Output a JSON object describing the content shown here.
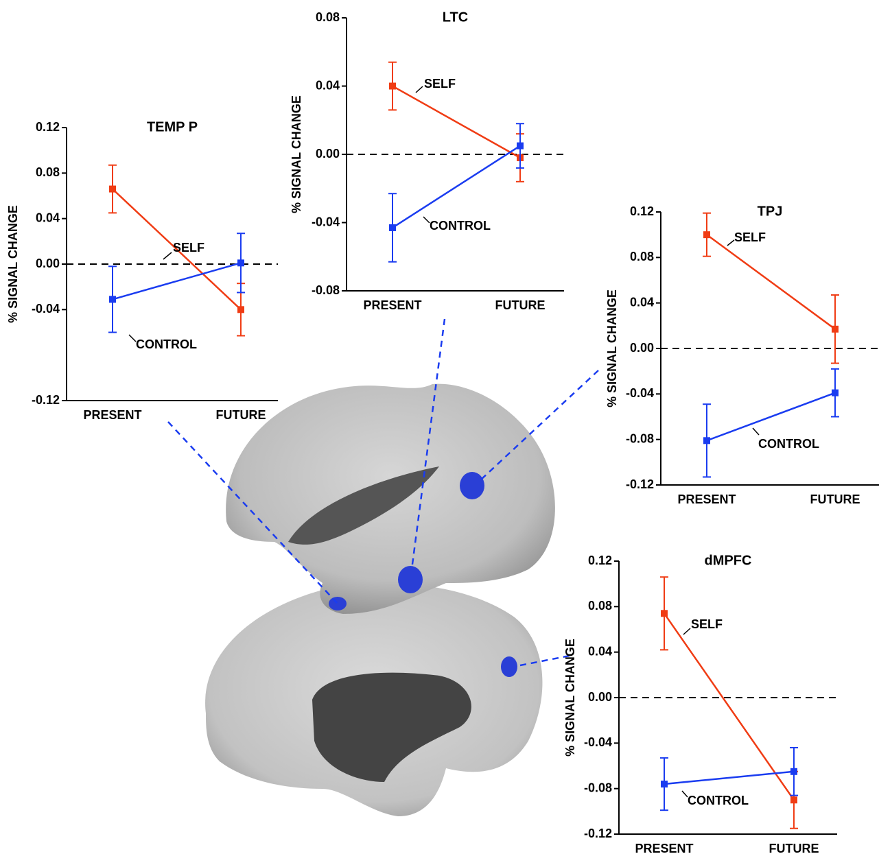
{
  "chart_data": [
    {
      "type": "line",
      "title": "TEMP P",
      "y_label": "% SIGNAL CHANGE",
      "categories": [
        "PRESENT",
        "FUTURE"
      ],
      "ylim": [
        -0.12,
        0.12
      ],
      "yticks": [
        0.12,
        0.08,
        0.04,
        {
          "value": 0,
          "label": "0.00"
        },
        -0.04,
        -0.12
      ],
      "reference_line": 0,
      "series": [
        {
          "name": "SELF",
          "color": "#f03c14",
          "values": [
            0.066,
            -0.04
          ],
          "errors": [
            0.021,
            0.023
          ]
        },
        {
          "name": "CONTROL",
          "color": "#1a3cf0",
          "values": [
            -0.031,
            0.001
          ],
          "errors": [
            0.029,
            0.026
          ]
        }
      ]
    },
    {
      "type": "line",
      "title": "LTC",
      "y_label": "% SIGNAL CHANGE",
      "categories": [
        "PRESENT",
        "FUTURE"
      ],
      "ylim": [
        -0.08,
        0.08
      ],
      "yticks": [
        0.08,
        0.04,
        {
          "value": 0,
          "label": "0.00"
        },
        -0.04,
        -0.08
      ],
      "reference_line": 0,
      "series": [
        {
          "name": "SELF",
          "color": "#f03c14",
          "values": [
            0.04,
            -0.002
          ],
          "errors": [
            0.014,
            0.014
          ]
        },
        {
          "name": "CONTROL",
          "color": "#1a3cf0",
          "values": [
            -0.043,
            0.005
          ],
          "errors": [
            0.02,
            0.013
          ]
        }
      ]
    },
    {
      "type": "line",
      "title": "TPJ",
      "y_label": "% SIGNAL CHANGE",
      "categories": [
        "PRESENT",
        "FUTURE"
      ],
      "ylim": [
        -0.12,
        0.12
      ],
      "yticks": [
        0.12,
        0.08,
        0.04,
        {
          "value": 0,
          "label": "0.00"
        },
        -0.04,
        -0.08,
        -0.12
      ],
      "reference_line": 0,
      "series": [
        {
          "name": "SELF",
          "color": "#f03c14",
          "values": [
            0.1,
            0.017
          ],
          "errors": [
            0.019,
            0.03
          ]
        },
        {
          "name": "CONTROL",
          "color": "#1a3cf0",
          "values": [
            -0.081,
            -0.039
          ],
          "errors": [
            0.032,
            0.021
          ]
        }
      ]
    },
    {
      "type": "line",
      "title": "dMPFC",
      "y_label": "% SIGNAL CHANGE",
      "categories": [
        "PRESENT",
        "FUTURE"
      ],
      "ylim": [
        -0.12,
        0.12
      ],
      "yticks": [
        0.12,
        0.08,
        0.04,
        {
          "value": 0,
          "label": "0.00"
        },
        -0.04,
        -0.08,
        -0.12
      ],
      "reference_line": 0,
      "series": [
        {
          "name": "SELF",
          "color": "#f03c14",
          "values": [
            0.074,
            -0.09
          ],
          "errors": [
            0.032,
            0.025
          ]
        },
        {
          "name": "CONTROL",
          "color": "#1a3cf0",
          "values": [
            -0.076,
            -0.065
          ],
          "errors": [
            0.023,
            0.021
          ]
        }
      ]
    }
  ]
}
